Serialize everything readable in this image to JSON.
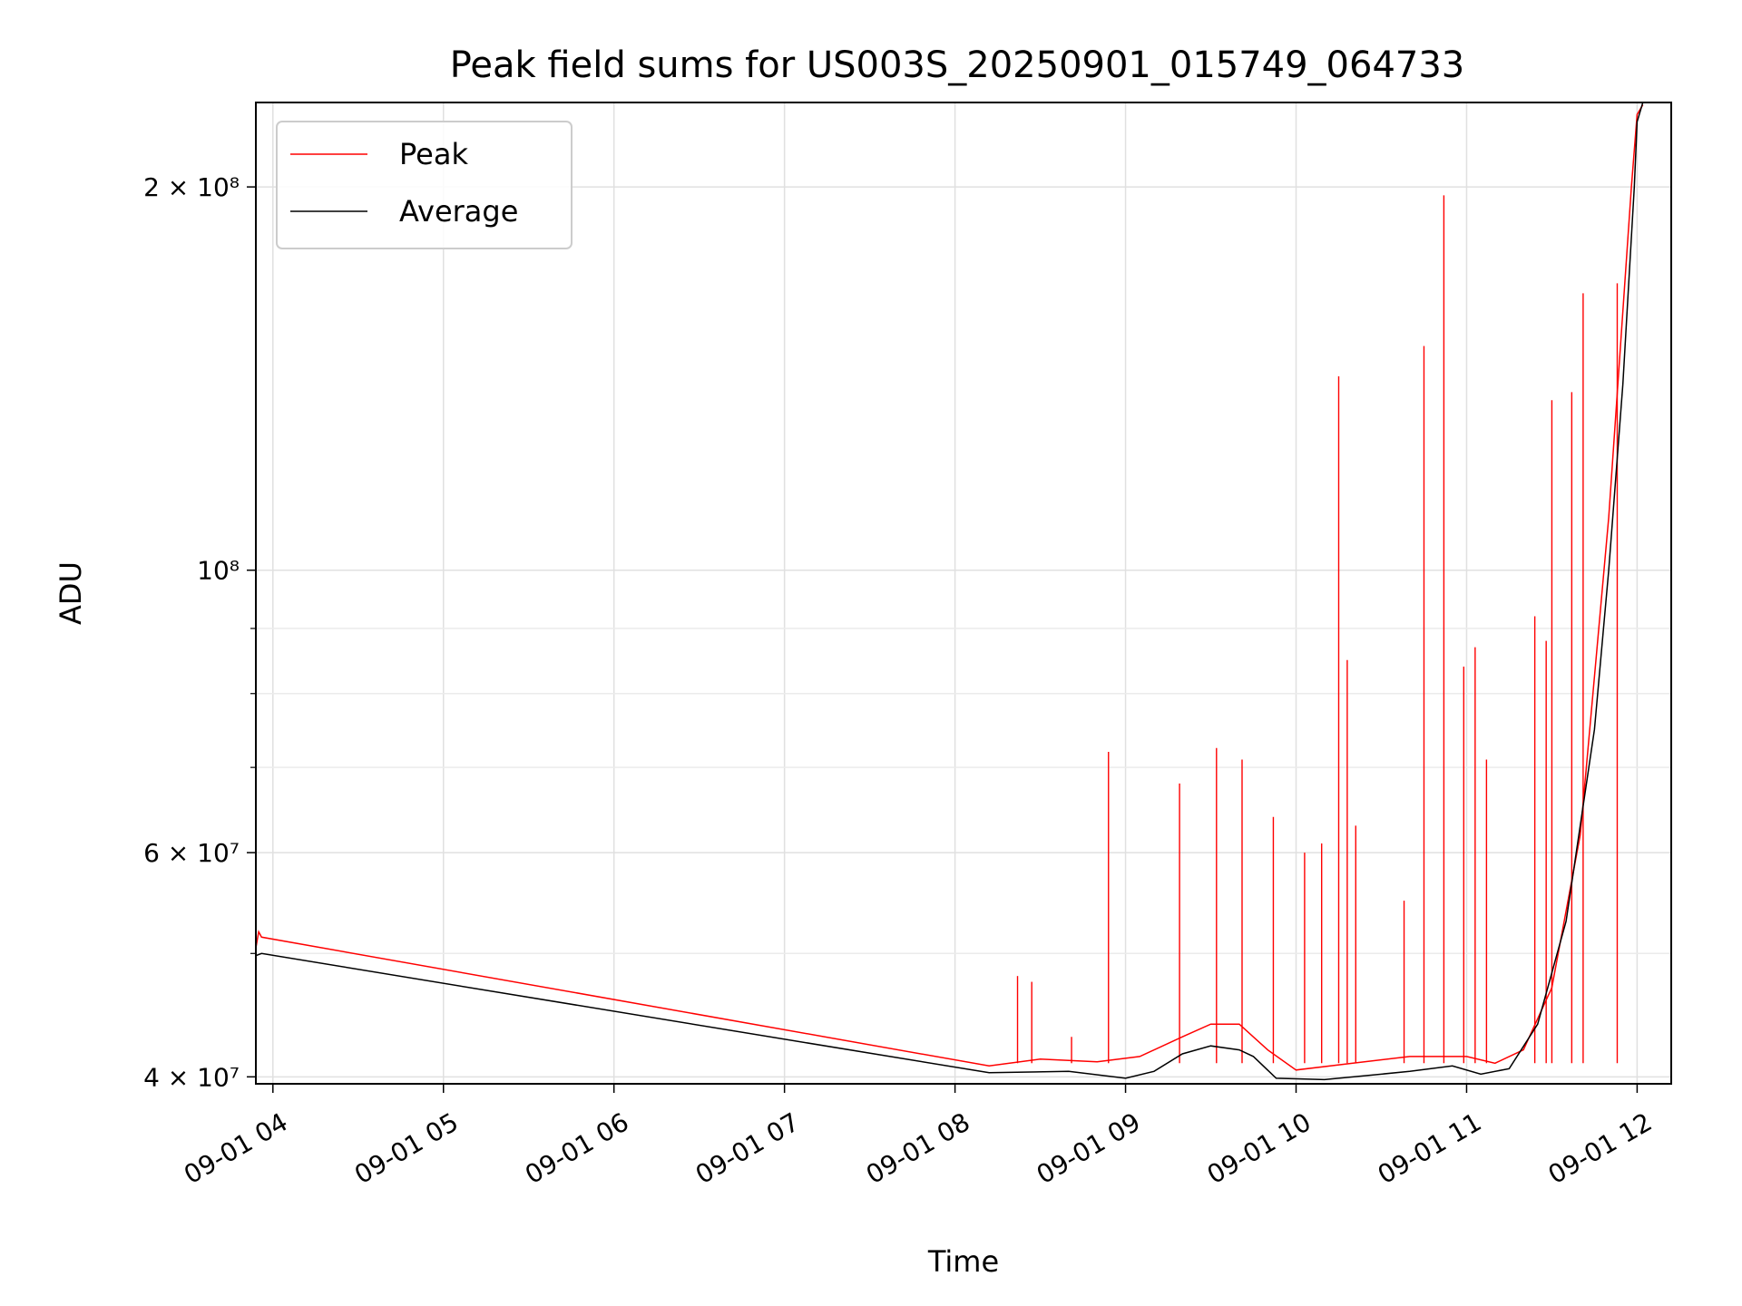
{
  "chart_data": {
    "type": "line",
    "title": "Peak field sums for US003S_20250901_015749_064733",
    "xlabel": "Time",
    "ylabel": "ADU",
    "y_scale": "log",
    "xlim": [
      "2025-09-01 03:54",
      "2025-09-01 12:12"
    ],
    "ylim": [
      39500000,
      233000000
    ],
    "grid": true,
    "legend_position": "top-left",
    "x_ticks": [
      {
        "time": "2025-09-01 04:00",
        "label": "09-01 04"
      },
      {
        "time": "2025-09-01 05:00",
        "label": "09-01 05"
      },
      {
        "time": "2025-09-01 06:00",
        "label": "09-01 06"
      },
      {
        "time": "2025-09-01 07:00",
        "label": "09-01 07"
      },
      {
        "time": "2025-09-01 08:00",
        "label": "09-01 08"
      },
      {
        "time": "2025-09-01 09:00",
        "label": "09-01 09"
      },
      {
        "time": "2025-09-01 10:00",
        "label": "09-01 10"
      },
      {
        "time": "2025-09-01 11:00",
        "label": "09-01 11"
      },
      {
        "time": "2025-09-01 12:00",
        "label": "09-01 12"
      }
    ],
    "y_ticks": [
      {
        "value": 40000000,
        "label": "4 × 10⁷"
      },
      {
        "value": 60000000,
        "label": "6 × 10⁷"
      },
      {
        "value": 100000000,
        "label": "10⁸"
      },
      {
        "value": 200000000,
        "label": "2 × 10⁸"
      }
    ],
    "y_minor_ticks": [
      50000000,
      70000000,
      80000000,
      90000000
    ],
    "series": [
      {
        "name": "Peak",
        "color": "#ff0000",
        "points": [
          [
            "2025-09-01 03:54",
            50500000
          ],
          [
            "2025-09-01 03:55",
            52000000
          ],
          [
            "2025-09-01 03:56",
            51500000
          ],
          [
            "2025-09-01 08:12",
            40800000
          ],
          [
            "2025-09-01 08:30",
            41300000
          ],
          [
            "2025-09-01 08:50",
            41100000
          ],
          [
            "2025-09-01 09:05",
            41500000
          ],
          [
            "2025-09-01 09:20",
            43000000
          ],
          [
            "2025-09-01 09:30",
            44000000
          ],
          [
            "2025-09-01 09:40",
            44000000
          ],
          [
            "2025-09-01 09:50",
            42000000
          ],
          [
            "2025-09-01 10:00",
            40500000
          ],
          [
            "2025-09-01 10:20",
            41000000
          ],
          [
            "2025-09-01 10:40",
            41500000
          ],
          [
            "2025-09-01 11:00",
            41500000
          ],
          [
            "2025-09-01 11:10",
            41000000
          ],
          [
            "2025-09-01 11:20",
            42000000
          ],
          [
            "2025-09-01 11:30",
            47000000
          ],
          [
            "2025-09-01 11:40",
            62000000
          ],
          [
            "2025-09-01 11:50",
            110000000
          ],
          [
            "2025-09-01 11:58",
            200000000
          ],
          [
            "2025-09-01 12:00",
            228000000
          ],
          [
            "2025-09-01 12:02",
            232000000
          ]
        ],
        "spikes": [
          [
            "2025-09-01 08:22",
            48000000
          ],
          [
            "2025-09-01 08:27",
            47500000
          ],
          [
            "2025-09-01 08:41",
            43000000
          ],
          [
            "2025-09-01 08:54",
            72000000
          ],
          [
            "2025-09-01 09:19",
            68000000
          ],
          [
            "2025-09-01 09:32",
            72500000
          ],
          [
            "2025-09-01 09:41",
            71000000
          ],
          [
            "2025-09-01 09:52",
            64000000
          ],
          [
            "2025-09-01 10:03",
            60000000
          ],
          [
            "2025-09-01 10:09",
            61000000
          ],
          [
            "2025-09-01 10:15",
            142000000
          ],
          [
            "2025-09-01 10:18",
            85000000
          ],
          [
            "2025-09-01 10:21",
            63000000
          ],
          [
            "2025-09-01 10:38",
            55000000
          ],
          [
            "2025-09-01 10:45",
            150000000
          ],
          [
            "2025-09-01 10:52",
            197000000
          ],
          [
            "2025-09-01 10:59",
            84000000
          ],
          [
            "2025-09-01 11:03",
            87000000
          ],
          [
            "2025-09-01 11:07",
            71000000
          ],
          [
            "2025-09-01 11:24",
            92000000
          ],
          [
            "2025-09-01 11:28",
            88000000
          ],
          [
            "2025-09-01 11:30",
            136000000
          ],
          [
            "2025-09-01 11:37",
            138000000
          ],
          [
            "2025-09-01 11:41",
            165000000
          ],
          [
            "2025-09-01 11:53",
            168000000
          ]
        ]
      },
      {
        "name": "Average",
        "color": "#000000",
        "points": [
          [
            "2025-09-01 03:54",
            49800000
          ],
          [
            "2025-09-01 03:56",
            50000000
          ],
          [
            "2025-09-01 08:12",
            40300000
          ],
          [
            "2025-09-01 08:40",
            40400000
          ],
          [
            "2025-09-01 09:00",
            39900000
          ],
          [
            "2025-09-01 09:10",
            40400000
          ],
          [
            "2025-09-01 09:20",
            41700000
          ],
          [
            "2025-09-01 09:30",
            42300000
          ],
          [
            "2025-09-01 09:40",
            42000000
          ],
          [
            "2025-09-01 09:45",
            41500000
          ],
          [
            "2025-09-01 09:53",
            39900000
          ],
          [
            "2025-09-01 10:10",
            39800000
          ],
          [
            "2025-09-01 10:40",
            40400000
          ],
          [
            "2025-09-01 10:55",
            40800000
          ],
          [
            "2025-09-01 11:05",
            40200000
          ],
          [
            "2025-09-01 11:15",
            40600000
          ],
          [
            "2025-09-01 11:25",
            44000000
          ],
          [
            "2025-09-01 11:35",
            53000000
          ],
          [
            "2025-09-01 11:45",
            75000000
          ],
          [
            "2025-09-01 11:50",
            100000000
          ],
          [
            "2025-09-01 11:55",
            140000000
          ],
          [
            "2025-09-01 11:59",
            200000000
          ],
          [
            "2025-09-01 12:00",
            225000000
          ],
          [
            "2025-09-01 12:02",
            233000000
          ]
        ]
      }
    ]
  }
}
